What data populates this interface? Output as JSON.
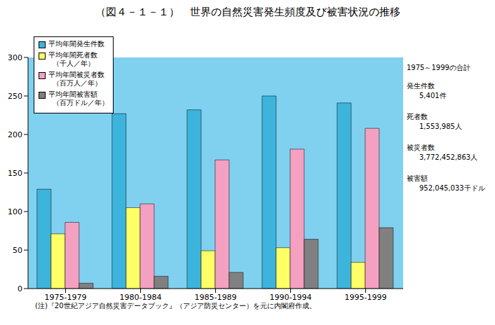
{
  "chart_data": {
    "type": "bar",
    "title": "（図４－１－１）　世界の自然災害発生頻度及び被害状況の推移",
    "categories": [
      "1975-1979",
      "1980-1984",
      "1985-1989",
      "1990-1994",
      "1995-1999"
    ],
    "series": [
      {
        "name": "平均年間発生件数",
        "color": "#3cb4dc",
        "values": [
          129,
          227,
          232,
          250,
          241
        ]
      },
      {
        "name": "平均年間死者数（千人／年）",
        "color": "#ffff66",
        "values": [
          71,
          105,
          49,
          53,
          34
        ]
      },
      {
        "name": "平均年間被災者数（百万人／年）",
        "color": "#f4a0c0",
        "values": [
          86,
          110,
          167,
          181,
          208
        ]
      },
      {
        "name": "平均年間被害額（百万ドル／年）",
        "color": "#808080",
        "values": [
          7,
          16,
          21,
          64,
          79
        ]
      }
    ],
    "ylim": [
      0,
      300
    ],
    "yticks": [
      0,
      50,
      100,
      150,
      200,
      250,
      300
    ],
    "grid": false,
    "legend": "upper left",
    "annotations": {
      "title": "1975～1999の合計",
      "items": [
        {
          "label": "発生件数",
          "value": "5,401件"
        },
        {
          "label": "死者数",
          "value": "1,553,985人"
        },
        {
          "label": "被災者数",
          "value": "3,772,452,863人"
        },
        {
          "label": "被害額",
          "value": "952,045,033千ドル"
        }
      ]
    },
    "note": "(注)『20世紀アジア自然災害データブック』（アジア防災センター）を元に内閣府作成。"
  }
}
